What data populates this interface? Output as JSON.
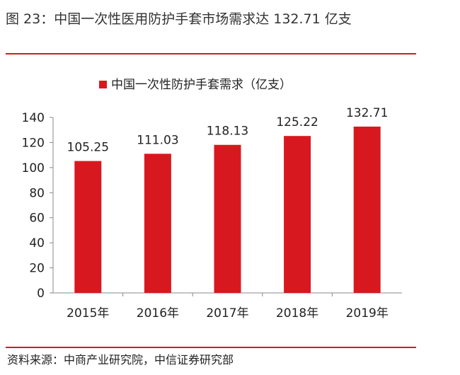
{
  "figure": {
    "title": "图 23：中国一次性医用防护手套市场需求达 132.71 亿支",
    "source": "资料来源：中商产业研究院，中信证券研究部",
    "accent_color": "#d7191f"
  },
  "chart_data": {
    "type": "bar",
    "title": "",
    "xlabel": "",
    "ylabel": "",
    "categories": [
      "2015年",
      "2016年",
      "2017年",
      "2018年",
      "2019年"
    ],
    "series": [
      {
        "name": "中国一次性防护手套需求（亿支）",
        "color": "#d7191f",
        "values": [
          105.25,
          111.03,
          118.13,
          125.22,
          132.71
        ],
        "labels": [
          "105.25",
          "111.03",
          "118.13",
          "125.22",
          "132.71"
        ]
      }
    ],
    "ylim": [
      0,
      140
    ],
    "yticks": [
      "0",
      "20",
      "40",
      "60",
      "80",
      "100",
      "120",
      "140"
    ],
    "legend_position": "top-center",
    "grid": false
  }
}
